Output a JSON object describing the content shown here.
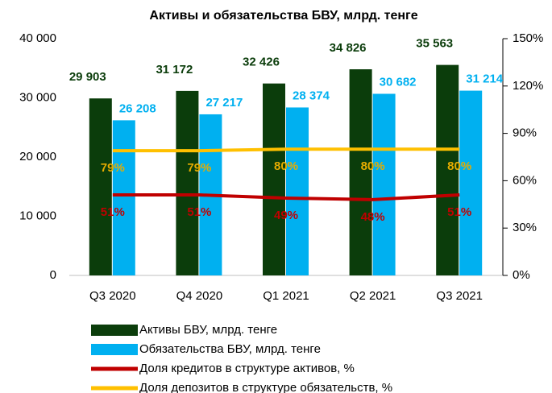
{
  "chart_data": {
    "type": "bar_line",
    "title": "Активы и обязательства БВУ, млрд. тенге",
    "categories": [
      "Q3 2020",
      "Q4 2020",
      "Q1 2021",
      "Q2 2021",
      "Q3 2021"
    ],
    "series": [
      {
        "name": "Активы БВУ, млрд. тенге",
        "type": "bar",
        "color": "#0b3d0b",
        "label_color": "#0b3d0b",
        "values": [
          29903,
          31172,
          32426,
          34826,
          35563
        ],
        "value_labels": [
          "29 903",
          "31 172",
          "32 426",
          "34 826",
          "35 563"
        ]
      },
      {
        "name": "Обязательства БВУ, млрд. тенге",
        "type": "bar",
        "color": "#00b0f0",
        "label_color": "#00b0f0",
        "values": [
          26208,
          27217,
          28374,
          30682,
          31214
        ],
        "value_labels": [
          "26 208",
          "27 217",
          "28 374",
          "30 682",
          "31 214"
        ]
      },
      {
        "name": "Доля кредитов в структуре активов, %",
        "type": "line",
        "axis": "y2",
        "color": "#c00000",
        "label_color": "#c00000",
        "values": [
          51,
          51,
          49,
          48,
          51
        ],
        "value_labels": [
          "51%",
          "51%",
          "49%",
          "48%",
          "51%"
        ]
      },
      {
        "name": "Доля депозитов в структуре обязательств, %",
        "type": "line",
        "axis": "y2",
        "color": "#ffc000",
        "label_color": "#e6ac00",
        "values": [
          79,
          79,
          80,
          80,
          80
        ],
        "value_labels": [
          "79%",
          "79%",
          "80%",
          "80%",
          "80%"
        ]
      }
    ],
    "ylim": [
      0,
      40000
    ],
    "yticks": [
      {
        "value": 0,
        "label": "0"
      },
      {
        "value": 10000,
        "label": "10 000"
      },
      {
        "value": 20000,
        "label": "20 000"
      },
      {
        "value": 30000,
        "label": "30 000"
      },
      {
        "value": 40000,
        "label": "40 000"
      }
    ],
    "y2lim": [
      0,
      150
    ],
    "y2ticks": [
      {
        "value": 0,
        "label": "0%"
      },
      {
        "value": 30,
        "label": "30%"
      },
      {
        "value": 60,
        "label": "60%"
      },
      {
        "value": 90,
        "label": "90%"
      },
      {
        "value": 120,
        "label": "120%"
      },
      {
        "value": 150,
        "label": "150%"
      }
    ],
    "legend": "bottom"
  }
}
